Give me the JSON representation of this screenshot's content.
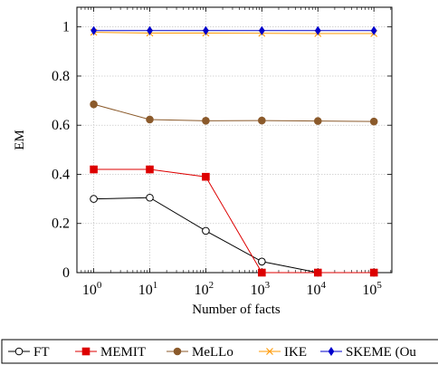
{
  "chart_data": {
    "type": "line",
    "xlabel": "Number of facts",
    "ylabel": "EM",
    "x": [
      1,
      10,
      100,
      1000,
      10000,
      100000
    ],
    "x_scale": "log",
    "x_tick_labels": [
      {
        "base": "10",
        "exp": "0"
      },
      {
        "base": "10",
        "exp": "1"
      },
      {
        "base": "10",
        "exp": "2"
      },
      {
        "base": "10",
        "exp": "3"
      },
      {
        "base": "10",
        "exp": "4"
      },
      {
        "base": "10",
        "exp": "5"
      }
    ],
    "y_ticks": [
      "0",
      "0.2",
      "0.4",
      "0.6",
      "0.8",
      "1"
    ],
    "ylim": [
      0,
      1.08
    ],
    "grid": true,
    "legend_position": "bottom",
    "series": [
      {
        "name": "FT",
        "color": "#000000",
        "marker": "circle-open",
        "values": [
          0.3,
          0.305,
          0.17,
          0.045,
          0.0,
          0.0
        ]
      },
      {
        "name": "MEMIT",
        "color": "#dd0000",
        "marker": "square",
        "values": [
          0.42,
          0.42,
          0.39,
          0.0,
          0.0,
          0.0
        ]
      },
      {
        "name": "MeLLo",
        "color": "#8b5a2b",
        "marker": "circle",
        "values": [
          0.685,
          0.623,
          0.618,
          0.619,
          0.617,
          0.615
        ]
      },
      {
        "name": "IKE",
        "color": "#ff9900",
        "marker": "x",
        "values": [
          0.978,
          0.975,
          0.975,
          0.974,
          0.973,
          0.973
        ]
      },
      {
        "name": "SKEME (Ou",
        "color": "#0000cc",
        "marker": "diamond",
        "values": [
          0.985,
          0.985,
          0.985,
          0.985,
          0.985,
          0.985
        ]
      }
    ]
  }
}
